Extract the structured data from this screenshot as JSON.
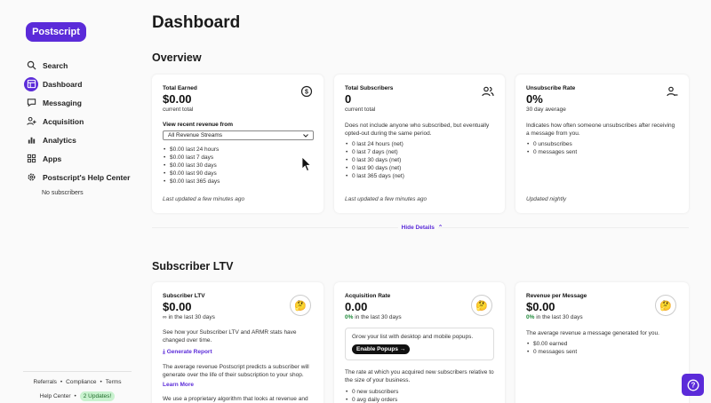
{
  "brand": {
    "name": "Postscript",
    "color": "#5b2bd9"
  },
  "sidebar": {
    "items": [
      {
        "label": "Search",
        "icon": "search-icon"
      },
      {
        "label": "Dashboard",
        "icon": "dashboard-icon",
        "active": true
      },
      {
        "label": "Messaging",
        "icon": "chat-icon"
      },
      {
        "label": "Acquisition",
        "icon": "user-plus-icon"
      },
      {
        "label": "Analytics",
        "icon": "bar-chart-icon"
      },
      {
        "label": "Apps",
        "icon": "grid-icon"
      },
      {
        "label": "Postscript's Help Center",
        "icon": "gear-icon"
      }
    ],
    "no_subscribers": "No subscribers",
    "footer": {
      "referrals": "Referrals",
      "compliance": "Compliance",
      "terms": "Terms",
      "help_center": "Help Center",
      "updates_badge": "2 Updates!"
    }
  },
  "page_title": "Dashboard",
  "overview": {
    "title": "Overview",
    "hide_details": "Hide Details",
    "total_earned": {
      "label": "Total Earned",
      "value": "$0.00",
      "sub": "current total",
      "select_label": "View recent revenue from",
      "select_value": "All Revenue Streams",
      "items": [
        "$0.00 last 24 hours",
        "$0.00 last 7 days",
        "$0.00 last 30 days",
        "$0.00 last 90 days",
        "$0.00 last 365 days"
      ],
      "updated": "Last updated a few minutes ago"
    },
    "total_subscribers": {
      "label": "Total Subscribers",
      "value": "0",
      "sub": "current total",
      "desc": "Does not include anyone who subscribed, but eventually opted-out during the same period.",
      "items": [
        "0 last 24 hours (net)",
        "0 last 7 days (net)",
        "0 last 30 days (net)",
        "0 last 90 days (net)",
        "0 last 365 days (net)"
      ],
      "updated": "Last updated a few minutes ago"
    },
    "unsubscribe_rate": {
      "label": "Unsubscribe Rate",
      "value": "0%",
      "sub": "30 day average",
      "desc": "Indicates how often someone unsubscribes after receiving a message from you.",
      "items": [
        "0 unsubscribes",
        "0 messages sent"
      ],
      "updated": "Updated nightly"
    }
  },
  "ltv": {
    "title": "Subscriber LTV",
    "subscriber_ltv": {
      "label": "Subscriber LTV",
      "value": "$0.00",
      "sub": "∞ in the last 30 days",
      "desc": "See how your Subscriber LTV and ARMR stats have changed over time.",
      "generate": "Generate Report",
      "desc2": "The average revenue Postscript predicts a subscriber will generate over the life of their subscription to your shop.",
      "learn_more": "Learn More",
      "desc3": "We use a proprietary algorithm that looks at revenue and"
    },
    "acquisition_rate": {
      "label": "Acquisition Rate",
      "value": "0.00",
      "change": "0%",
      "sub": "in the last 30 days",
      "box_text": "Grow your list with desktop and mobile popups.",
      "button": "Enable Popups",
      "desc": "The rate at which you acquired new subscribers relative to the size of your business.",
      "items": [
        "0 new subscribers",
        "0 avg daily orders"
      ]
    },
    "revenue_per_message": {
      "label": "Revenue per Message",
      "value": "$0.00",
      "change": "0%",
      "sub": "in the last 30 days",
      "desc": "The average revenue a message generated for you.",
      "items": [
        "$0.00 earned",
        "0 messages sent"
      ]
    }
  }
}
